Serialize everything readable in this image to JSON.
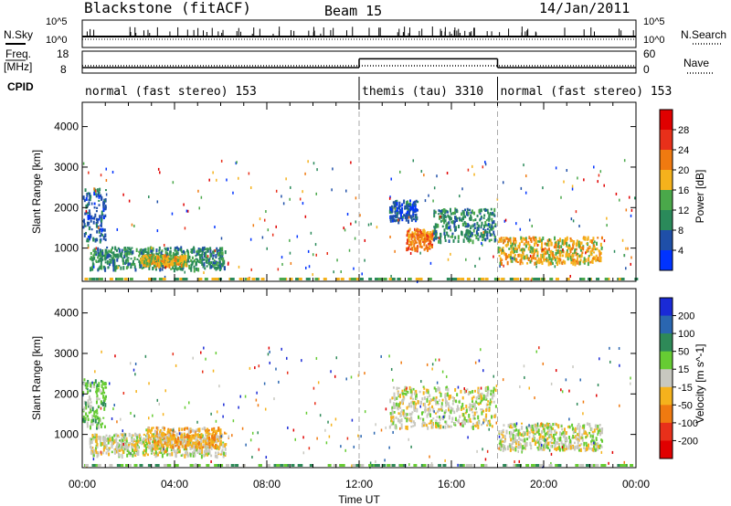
{
  "header": {
    "station": "Blackstone (fitACF)",
    "beam": "Beam 15",
    "date": "14/Jan/2011"
  },
  "status_panels": {
    "nsky_label": "N.Sky",
    "nsearch_label": "N.Search",
    "freq_label_line1": "Freq.",
    "freq_label_line2": "[MHz]",
    "nave_label": "Nave",
    "cpid_label": "CPID",
    "left_ticks_top": [
      "10^5",
      "10^0"
    ],
    "right_ticks_top": [
      "10^5",
      "10^0"
    ],
    "left_ticks_freq": [
      "18",
      "8"
    ],
    "right_ticks_freq": [
      "60",
      "0"
    ],
    "cpid_segments": [
      {
        "label": "normal (fast stereo) 153",
        "start_hour": 0,
        "end_hour": 12
      },
      {
        "label": "themis (tau) 3310",
        "start_hour": 12,
        "end_hour": 18
      },
      {
        "label": "normal (fast stereo) 153",
        "start_hour": 18,
        "end_hour": 24
      }
    ],
    "freq_segments": [
      {
        "start_hour": 0,
        "end_hour": 12,
        "freq_mhz": 10.5
      },
      {
        "start_hour": 12,
        "end_hour": 18,
        "freq_mhz": 14.5
      },
      {
        "start_hour": 18,
        "end_hour": 24,
        "freq_mhz": 10.5
      }
    ]
  },
  "chart_data": [
    {
      "type": "heatmap",
      "panel": "power",
      "ylabel": "Slant Range [km]",
      "ylim": [
        180,
        4600
      ],
      "yticks": [
        "1000",
        "2000",
        "3000",
        "4000"
      ],
      "xlim_hours": [
        0,
        24
      ],
      "colorbar_label": "Power [dB]",
      "colorbar_ticks": [
        "4",
        "8",
        "12",
        "16",
        "20",
        "24",
        "28"
      ],
      "colorbar_colors": [
        "#0033ff",
        "#1f4fa8",
        "#2a8a5a",
        "#4aa84a",
        "#f5b21c",
        "#f07a10",
        "#e8301a",
        "#e00000"
      ],
      "echo_regions": [
        {
          "t_start": 0.0,
          "t_end": 1.0,
          "r_min": 1200,
          "r_max": 2500,
          "level": 1
        },
        {
          "t_start": 0.3,
          "t_end": 6.2,
          "r_min": 500,
          "r_max": 1050,
          "level": 2
        },
        {
          "t_start": 2.5,
          "t_end": 4.5,
          "r_min": 600,
          "r_max": 850,
          "level": 4
        },
        {
          "t_start": 13.3,
          "t_end": 14.5,
          "r_min": 1700,
          "r_max": 2200,
          "level": 1
        },
        {
          "t_start": 14.0,
          "t_end": 15.2,
          "r_min": 1000,
          "r_max": 1500,
          "level": 5
        },
        {
          "t_start": 15.2,
          "t_end": 17.9,
          "r_min": 1200,
          "r_max": 2000,
          "level": 2
        },
        {
          "t_start": 18.0,
          "t_end": 22.5,
          "r_min": 650,
          "r_max": 1300,
          "level": 4
        }
      ]
    },
    {
      "type": "heatmap",
      "panel": "velocity",
      "ylabel": "Slant Range [km]",
      "ylim": [
        180,
        4600
      ],
      "yticks": [
        "1000",
        "2000",
        "3000",
        "4000"
      ],
      "xlim_hours": [
        0,
        24
      ],
      "xticks": [
        "00:00",
        "04:00",
        "08:00",
        "12:00",
        "16:00",
        "20:00",
        "00:00"
      ],
      "xlabel": "Time UT",
      "colorbar_label": "Velocity [m s^-1]",
      "colorbar_ticks": [
        "200",
        "100",
        "50",
        "15",
        "-15",
        "-50",
        "-100",
        "-200"
      ],
      "colorbar_colors": [
        "#1a2ad6",
        "#2a66b0",
        "#2e8a58",
        "#66cc33",
        "#c8c8c0",
        "#f5b21c",
        "#f07a10",
        "#e8301a",
        "#e00000"
      ],
      "echo_regions": [
        {
          "t_start": 0.0,
          "t_end": 1.0,
          "r_min": 1200,
          "r_max": 2400,
          "level": 3
        },
        {
          "t_start": 0.3,
          "t_end": 6.2,
          "r_min": 500,
          "r_max": 1050,
          "level": 4
        },
        {
          "t_start": 2.8,
          "t_end": 6.0,
          "r_min": 700,
          "r_max": 1200,
          "level": 5
        },
        {
          "t_start": 13.3,
          "t_end": 17.9,
          "r_min": 1200,
          "r_max": 2200,
          "level": 4
        },
        {
          "t_start": 18.0,
          "t_end": 22.5,
          "r_min": 650,
          "r_max": 1300,
          "level": 4
        }
      ]
    }
  ]
}
